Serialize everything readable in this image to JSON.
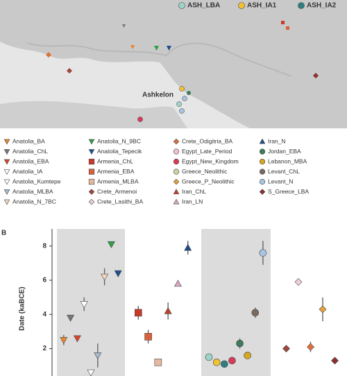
{
  "map": {
    "place_label": "Ashkelon"
  },
  "panel_label": "B",
  "chart_data": {
    "type": "dotplot",
    "ylabel": "Date (kaBCE)",
    "ylim": [
      0.4,
      9
    ],
    "yticks": [
      2,
      4,
      6,
      8
    ],
    "series": [
      {
        "name": "ASH_LBA",
        "color": "#9fd3c9",
        "marker": "circle",
        "panel": 3,
        "values": [
          1.5
        ],
        "errors": [
          null
        ]
      },
      {
        "name": "ASH_IA1",
        "color": "#f2c230",
        "marker": "circle",
        "panel": 3,
        "values": [
          1.2
        ],
        "errors": [
          null
        ]
      },
      {
        "name": "ASH_IA2",
        "color": "#2f7f80",
        "marker": "circle",
        "panel": 3,
        "values": [
          1.1
        ],
        "errors": [
          null
        ]
      },
      {
        "name": "Anatolia_BA",
        "color": "#e8862a",
        "marker": "tri-down",
        "panel": 1,
        "values": [
          2.5
        ],
        "errors": [
          0.3
        ]
      },
      {
        "name": "Anatolia_ChL",
        "color": "#777777",
        "marker": "tri-down",
        "panel": 1,
        "values": [
          3.8
        ],
        "errors": [
          null
        ]
      },
      {
        "name": "Anatolia_EBA",
        "color": "#d9442b",
        "marker": "tri-down",
        "panel": 1,
        "values": [
          2.6
        ],
        "errors": [
          null
        ]
      },
      {
        "name": "Anatolia_IA",
        "color": "#ffffff",
        "marker": "tri-down",
        "panel": 1,
        "values": [
          4.6
        ],
        "errors": [
          0.4
        ]
      },
      {
        "name": "Anatolia_Kumtepe",
        "color": "#ffffff",
        "marker": "tri-down",
        "panel": 1,
        "values": [
          0.6
        ],
        "errors": [
          null
        ]
      },
      {
        "name": "Anatolia_MLBA",
        "color": "#a9bccc",
        "marker": "tri-down",
        "panel": 1,
        "values": [
          1.6
        ],
        "errors": [
          0.7
        ]
      },
      {
        "name": "Anatolia_N_7BC",
        "color": "#f6d7bd",
        "marker": "tri-down",
        "panel": 1,
        "values": [
          6.2
        ],
        "errors": [
          0.5
        ]
      },
      {
        "name": "Anatolia_N_9BC",
        "color": "#2ea043",
        "marker": "tri-down",
        "panel": 1,
        "values": [
          8.1
        ],
        "errors": [
          null
        ]
      },
      {
        "name": "Anatolia_Tepecik",
        "color": "#1f4e8c",
        "marker": "tri-down",
        "panel": 1,
        "values": [
          6.4
        ],
        "errors": [
          null
        ]
      },
      {
        "name": "Armenia_ChL",
        "color": "#c93a2b",
        "marker": "square",
        "panel": 2,
        "values": [
          4.1
        ],
        "errors": [
          0.4
        ]
      },
      {
        "name": "Armenia_EBA",
        "color": "#d9603b",
        "marker": "square",
        "panel": 2,
        "values": [
          2.7
        ],
        "errors": [
          0.4
        ]
      },
      {
        "name": "Armenia_MLBA",
        "color": "#e6b8a0",
        "marker": "square",
        "panel": 2,
        "values": [
          1.2
        ],
        "errors": [
          null
        ]
      },
      {
        "name": "Crete_Armenoi",
        "color": "#a0463c",
        "marker": "diamond",
        "panel": 4,
        "values": [
          2.0
        ],
        "errors": [
          null
        ]
      },
      {
        "name": "Crete_Lasithi_BA",
        "color": "#f0d0d8",
        "marker": "diamond",
        "panel": 4,
        "values": [
          5.9
        ],
        "errors": [
          null
        ]
      },
      {
        "name": "Crete_Odigitria_BA",
        "color": "#e0703a",
        "marker": "diamond",
        "panel": 4,
        "values": [
          2.1
        ],
        "errors": [
          0.3
        ]
      },
      {
        "name": "Egypt_Late_Period",
        "color": "#f0c0d0",
        "marker": "circle",
        "panel": 3,
        "values": [],
        "errors": []
      },
      {
        "name": "Egypt_New_Kingdom",
        "color": "#d93a5a",
        "marker": "circle",
        "panel": 3,
        "values": [
          1.3
        ],
        "errors": [
          null
        ]
      },
      {
        "name": "Greece_Neolithic",
        "color": "#c9d4a0",
        "marker": "circle",
        "panel": 3,
        "values": [],
        "errors": []
      },
      {
        "name": "Greece_P_Neolithic",
        "color": "#e8a23a",
        "marker": "diamond",
        "panel": 4,
        "values": [
          4.3
        ],
        "errors": [
          0.7
        ]
      },
      {
        "name": "Iran_ChL",
        "color": "#c0402b",
        "marker": "tri-up",
        "panel": 2,
        "values": [
          4.2
        ],
        "errors": [
          0.5
        ]
      },
      {
        "name": "Iran_LN",
        "color": "#d8a8c0",
        "marker": "tri-up",
        "panel": 2,
        "values": [
          5.8
        ],
        "errors": [
          null
        ]
      },
      {
        "name": "Iran_N",
        "color": "#1f4e8c",
        "marker": "tri-up",
        "panel": 2,
        "values": [
          7.9
        ],
        "errors": [
          0.4
        ]
      },
      {
        "name": "Jordan_EBA",
        "color": "#3f7a5a",
        "marker": "circle",
        "panel": 3,
        "values": [
          2.3
        ],
        "errors": [
          0.3
        ]
      },
      {
        "name": "Lebanon_MBA",
        "color": "#d4a820",
        "marker": "circle",
        "panel": 3,
        "values": [
          1.6
        ],
        "errors": [
          null
        ]
      },
      {
        "name": "Levant_ChL",
        "color": "#7a6a60",
        "marker": "circle",
        "panel": 3,
        "values": [
          4.1
        ],
        "errors": [
          0.3
        ]
      },
      {
        "name": "Levant_N",
        "color": "#a8c4e0",
        "marker": "circle",
        "panel": 3,
        "values": [
          7.6
        ],
        "errors": [
          0.7
        ]
      },
      {
        "name": "S_Greece_LBA",
        "color": "#8a3030",
        "marker": "diamond",
        "panel": 4,
        "values": [
          1.3
        ],
        "errors": [
          null
        ]
      }
    ]
  }
}
